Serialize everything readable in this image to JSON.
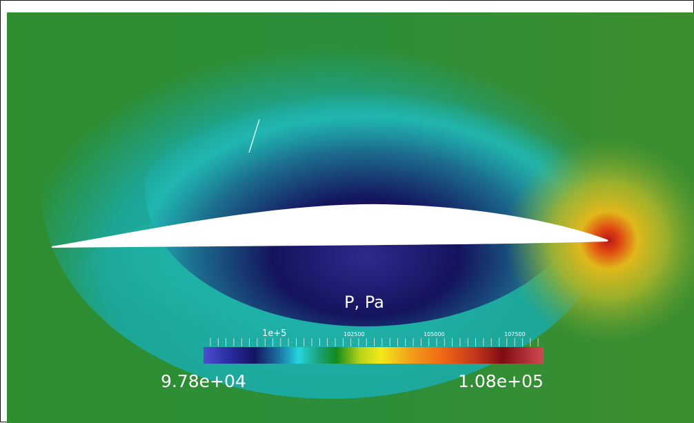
{
  "colorbar": {
    "title": "P, Pa",
    "min_label": "9.78e+04",
    "max_label": "1.08e+05",
    "tick_labels": [
      "1e+5",
      "102500",
      "105000",
      "107500"
    ]
  },
  "colors": {
    "far_field": "#2f8f2d",
    "low_pressure": "#1e1a6e",
    "mid_pressure": "#1fb3b0",
    "high_pressure": "#e0c21a",
    "stagnation": "#c21a1a",
    "airfoil": "#ffffff"
  }
}
